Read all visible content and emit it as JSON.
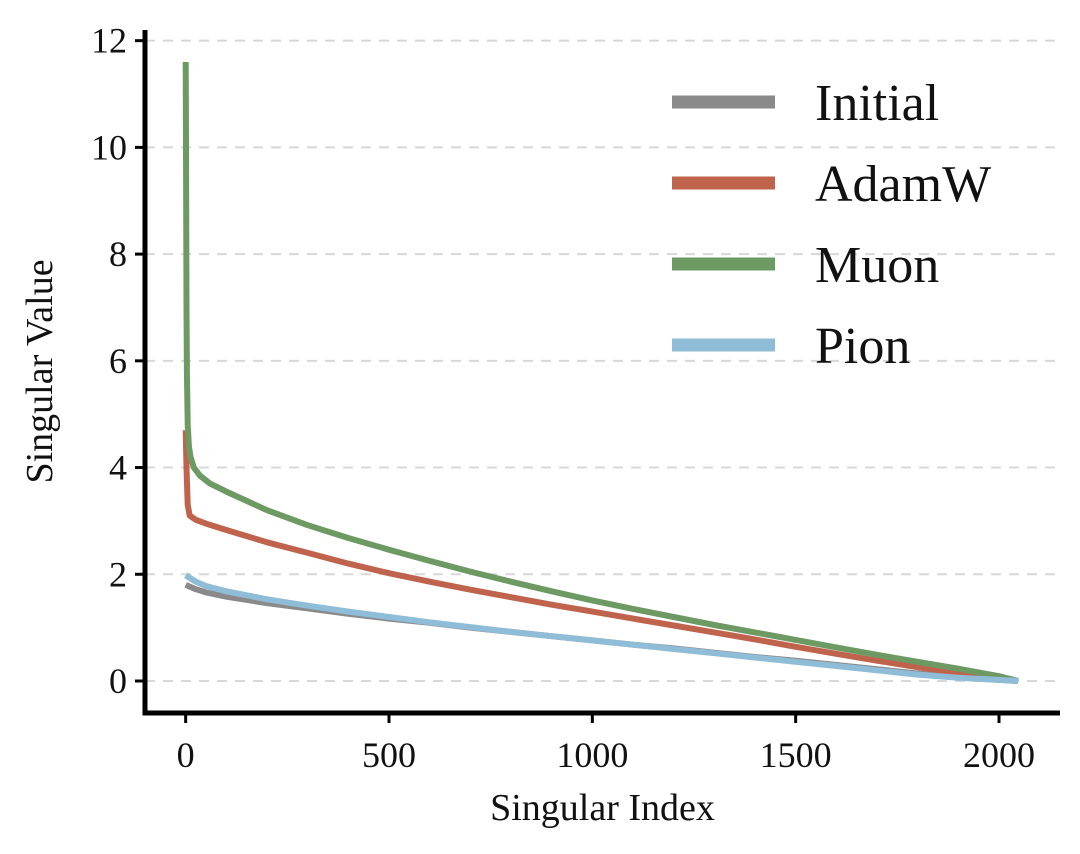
{
  "chart_data": {
    "type": "line",
    "title": "",
    "xlabel": "Singular Index",
    "ylabel": "Singular Value",
    "xlim": [
      -100,
      2150
    ],
    "ylim": [
      -0.6,
      12.2
    ],
    "xticks": [
      0,
      500,
      1000,
      1500,
      2000
    ],
    "yticks": [
      0,
      2,
      4,
      6,
      8,
      10,
      12
    ],
    "xtick_labels": [
      "0",
      "500",
      "1000",
      "1500",
      "2000"
    ],
    "ytick_labels": [
      "0",
      "2",
      "4",
      "6",
      "8",
      "10",
      "12"
    ],
    "grid": "horizontal dashed",
    "legend_position": "top-right",
    "series": [
      {
        "name": "Initial",
        "color": "#8a8a8a",
        "x": [
          0,
          25,
          50,
          100,
          200,
          300,
          400,
          500,
          600,
          700,
          800,
          900,
          1000,
          1100,
          1200,
          1300,
          1400,
          1500,
          1600,
          1700,
          1800,
          1900,
          2000,
          2047
        ],
        "y": [
          1.8,
          1.72,
          1.66,
          1.58,
          1.46,
          1.36,
          1.26,
          1.17,
          1.09,
          1.0,
          0.92,
          0.84,
          0.76,
          0.68,
          0.61,
          0.53,
          0.45,
          0.38,
          0.3,
          0.22,
          0.14,
          0.07,
          0.02,
          0.0
        ]
      },
      {
        "name": "AdamW",
        "color": "#c0634d",
        "x": [
          0,
          2,
          5,
          10,
          25,
          50,
          100,
          200,
          300,
          400,
          500,
          600,
          700,
          800,
          900,
          1000,
          1100,
          1200,
          1300,
          1400,
          1500,
          1600,
          1700,
          1800,
          1900,
          2000,
          2047
        ],
        "y": [
          4.7,
          4.0,
          3.3,
          3.1,
          3.02,
          2.95,
          2.83,
          2.6,
          2.4,
          2.2,
          2.02,
          1.86,
          1.71,
          1.57,
          1.43,
          1.3,
          1.17,
          1.04,
          0.91,
          0.78,
          0.64,
          0.51,
          0.38,
          0.26,
          0.15,
          0.05,
          0.0
        ]
      },
      {
        "name": "Muon",
        "color": "#6c9a62",
        "x": [
          0,
          1,
          2,
          3,
          5,
          8,
          12,
          20,
          35,
          60,
          100,
          200,
          300,
          400,
          500,
          600,
          700,
          800,
          900,
          1000,
          1100,
          1200,
          1300,
          1400,
          1500,
          1600,
          1700,
          1800,
          1900,
          2000,
          2047
        ],
        "y": [
          11.6,
          9.5,
          7.0,
          5.8,
          4.8,
          4.4,
          4.2,
          4.0,
          3.85,
          3.7,
          3.55,
          3.2,
          2.92,
          2.68,
          2.46,
          2.25,
          2.05,
          1.86,
          1.68,
          1.51,
          1.35,
          1.2,
          1.05,
          0.91,
          0.77,
          0.63,
          0.49,
          0.36,
          0.23,
          0.09,
          0.0
        ]
      },
      {
        "name": "Pion",
        "color": "#8fbcd6",
        "x": [
          0,
          25,
          50,
          100,
          200,
          300,
          400,
          500,
          600,
          700,
          800,
          900,
          1000,
          1100,
          1200,
          1300,
          1400,
          1500,
          1600,
          1700,
          1800,
          1900,
          2000,
          2047
        ],
        "y": [
          1.98,
          1.86,
          1.78,
          1.68,
          1.53,
          1.41,
          1.3,
          1.2,
          1.1,
          1.01,
          0.92,
          0.84,
          0.76,
          0.68,
          0.6,
          0.52,
          0.44,
          0.36,
          0.28,
          0.2,
          0.12,
          0.06,
          0.02,
          0.0
        ]
      }
    ]
  }
}
